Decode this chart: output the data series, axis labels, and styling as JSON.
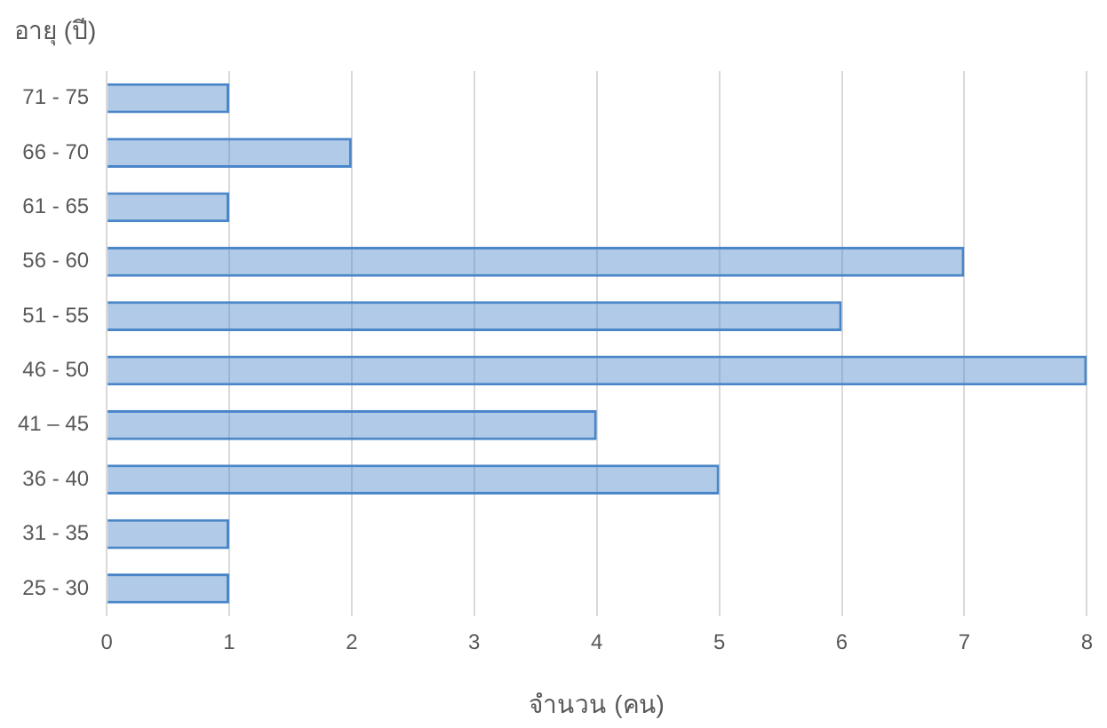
{
  "chart_data": {
    "type": "bar",
    "orientation": "horizontal",
    "ylabel": "อายุ (ปี)",
    "xlabel": "จำนวน (คน)",
    "categories": [
      "71 - 75",
      "66 - 70",
      "61 - 65",
      "56 - 60",
      "51 - 55",
      "46 - 50",
      "41 – 45",
      "36 - 40",
      "31 - 35",
      "25 - 30"
    ],
    "values": [
      1,
      2,
      1,
      7,
      6,
      8,
      4,
      5,
      1,
      1
    ],
    "color": "#4a86c8",
    "xlim": [
      0,
      8
    ],
    "xticks": [
      0,
      1,
      2,
      3,
      4,
      5,
      6,
      7,
      8
    ],
    "grid": "x",
    "legend": false
  }
}
